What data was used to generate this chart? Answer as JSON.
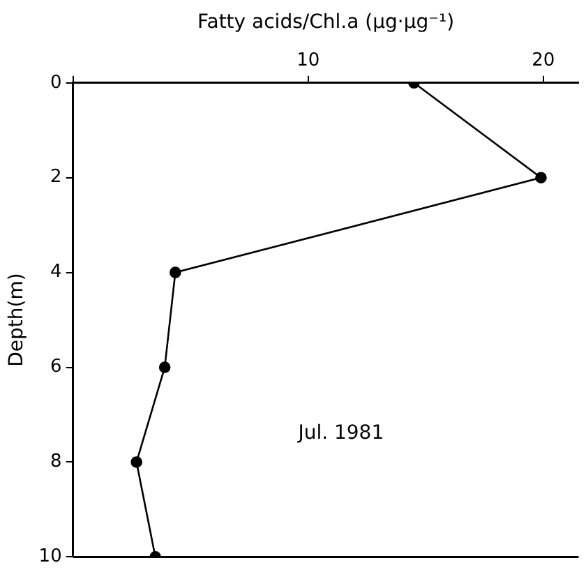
{
  "chart_data": {
    "type": "line",
    "xlabel": "Fatty acids/Chl.a (μg·μg⁻¹)",
    "ylabel": "Depth(m)",
    "annotations": [
      "Jul. 1981"
    ],
    "series": [
      {
        "color": "#000000",
        "x": [
          14.5,
          19.9,
          4.35,
          3.9,
          2.7,
          3.5
        ],
        "values": [
          0,
          2,
          4,
          6,
          8,
          10
        ]
      }
    ],
    "xlim": [
      0,
      21.5
    ],
    "xticks": [
      {
        "value": 0,
        "label": null
      },
      10,
      20
    ],
    "ylim": [
      10,
      0
    ],
    "yticks": [
      0,
      2,
      4,
      6,
      8,
      10
    ],
    "grid": false,
    "legend": false,
    "marker": "circle",
    "line_style": "solid"
  }
}
